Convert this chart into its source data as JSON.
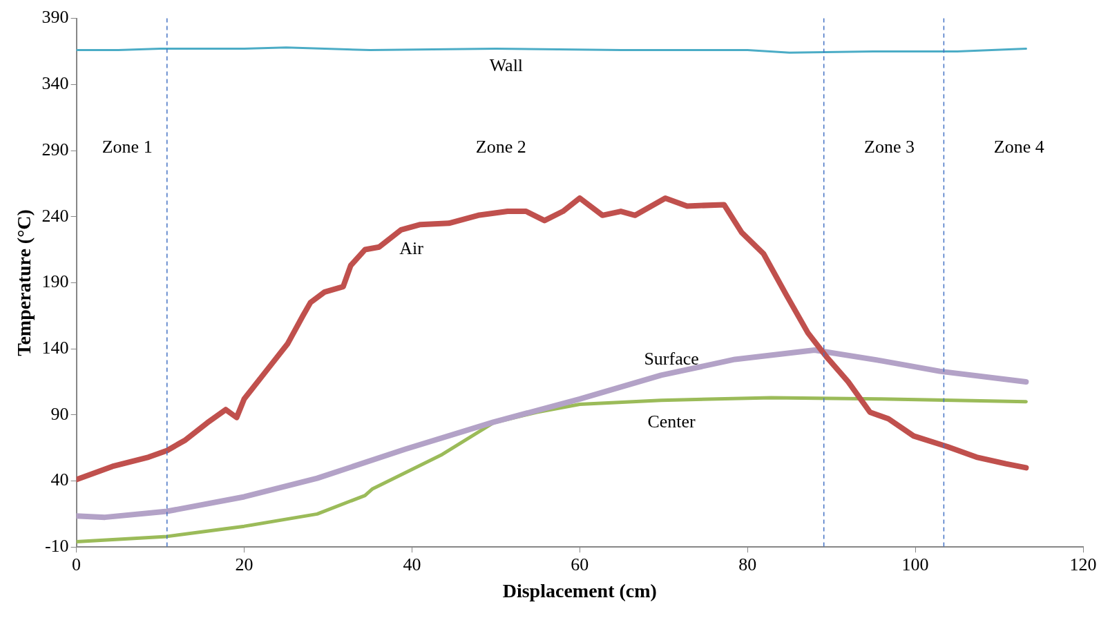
{
  "chart_data": {
    "type": "line",
    "xlabel": "Displacement (cm)",
    "ylabel": "Temperature (°C)",
    "xlim": [
      0,
      120
    ],
    "xticks": [
      0,
      20,
      40,
      60,
      80,
      100,
      120
    ],
    "ylim": [
      -10,
      390
    ],
    "yticks": [
      -10,
      40,
      90,
      140,
      190,
      240,
      290,
      340,
      390
    ],
    "grid": false,
    "legend": false,
    "line_style": "solid",
    "series": [
      {
        "name": "Wall",
        "color": "#4bacc6",
        "x": [
          0,
          5,
          10,
          20,
          25,
          35,
          50,
          65,
          80,
          85,
          95,
          105,
          113.2
        ],
        "values": [
          366,
          366,
          367,
          367,
          368,
          366,
          367,
          366,
          366,
          364,
          365,
          365,
          367
        ]
      },
      {
        "name": "Air",
        "color": "#c0504d",
        "x": [
          0,
          4.3,
          8.6,
          10.8,
          13,
          15.6,
          17.8,
          19.1,
          20,
          22.6,
          25.2,
          27,
          27.9,
          29.6,
          31.8,
          32.7,
          34.4,
          36.1,
          38.7,
          41,
          44.4,
          47.9,
          51.4,
          53.6,
          55.8,
          58,
          60,
          62.7,
          64.9,
          66.6,
          70.2,
          72.8,
          77.2,
          79.3,
          81.9,
          84.6,
          87.2,
          89.4,
          92,
          94.6,
          96.8,
          99.8,
          103.8,
          107.3,
          110.8,
          113.2
        ],
        "values": [
          41,
          51,
          58,
          63,
          71,
          84,
          94,
          88,
          102,
          123,
          144,
          165,
          175,
          183,
          187,
          203,
          215,
          217,
          230,
          234,
          235,
          241,
          244,
          244,
          237,
          244,
          254,
          241,
          244,
          241,
          254,
          248,
          249,
          228,
          212,
          181,
          152,
          134,
          115,
          92,
          87,
          74,
          66,
          58,
          53,
          50
        ]
      },
      {
        "name": "Surface",
        "color": "#b3a2c7",
        "x": [
          0,
          3.4,
          10.8,
          20,
          28.7,
          39.2,
          49.7,
          60,
          69.7,
          78.5,
          88,
          95.9,
          102.9,
          113.2
        ],
        "values": [
          13.5,
          12.5,
          17,
          28,
          42,
          64,
          84.5,
          102,
          120,
          132,
          139,
          131,
          123,
          115
        ]
      },
      {
        "name": "Center",
        "color": "#9bbb59",
        "x": [
          0,
          10.8,
          20,
          28.7,
          34.4,
          35.3,
          43.6,
          49.7,
          54.9,
          60,
          69.7,
          82.8,
          95.9,
          113.2
        ],
        "values": [
          -6,
          -2,
          5.7,
          15,
          29,
          34,
          60,
          84,
          92,
          98,
          101,
          103,
          102,
          100
        ]
      }
    ],
    "ref_lines": [
      {
        "axis": "x",
        "value": 10.8,
        "color": "#4472c4",
        "line_style": "dashed"
      },
      {
        "axis": "x",
        "value": 89.1,
        "color": "#4472c4",
        "line_style": "dashed"
      },
      {
        "axis": "x",
        "value": 103.4,
        "color": "#4472c4",
        "line_style": "dashed"
      }
    ],
    "annotations": [
      "Zone 1",
      "Zone 2",
      "Zone 3",
      "Zone 4"
    ]
  }
}
